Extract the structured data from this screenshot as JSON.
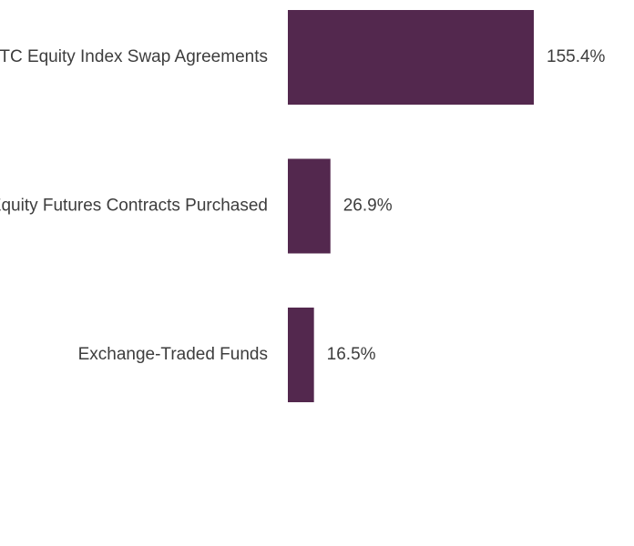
{
  "chart_data": {
    "type": "bar",
    "orientation": "horizontal",
    "categories": [
      "OTC Equity Index Swap Agreements",
      "Equity Futures Contracts Purchased",
      "Exchange-Traded Funds"
    ],
    "values": [
      155.4,
      26.9,
      16.5
    ],
    "value_labels": [
      "155.4%",
      "26.9%",
      "16.5%"
    ],
    "unit": "%",
    "title": "",
    "xlabel": "",
    "ylabel": "",
    "grid": false,
    "legend": "none",
    "colors": {
      "bar": "#53284e",
      "text": "#3d3d3d"
    }
  }
}
